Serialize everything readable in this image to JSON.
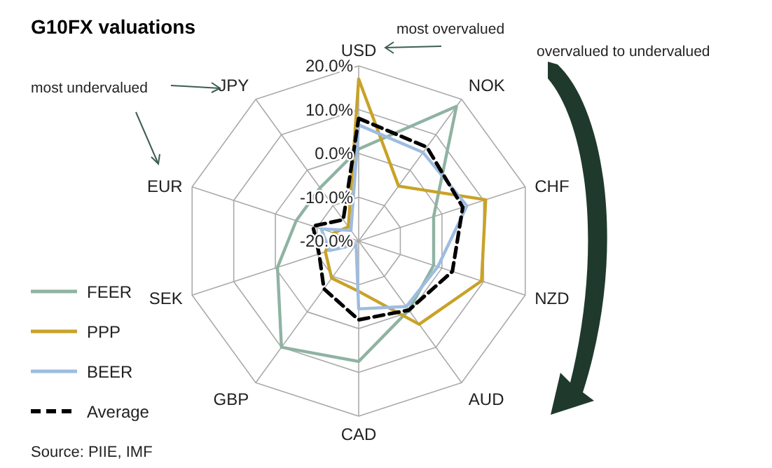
{
  "chart_data": {
    "type": "radar",
    "title": "G10FX valuations",
    "categories": [
      "USD",
      "NOK",
      "CHF",
      "NZD",
      "AUD",
      "CAD",
      "GBP",
      "SEK",
      "EUR",
      "JPY"
    ],
    "series": [
      {
        "name": "FEER",
        "color": "#8fb3a3",
        "values": [
          1,
          18,
          -2,
          -2,
          -0.5,
          7.5,
          10,
          -0.5,
          -5,
          -5
        ]
      },
      {
        "name": "PPP",
        "color": "#c9a227",
        "values": [
          17,
          -4.5,
          10.5,
          9.5,
          3.5,
          -8.5,
          -9.5,
          -12,
          -14,
          -16
        ]
      },
      {
        "name": "BEER",
        "color": "#9dbce0",
        "values": [
          6.5,
          5,
          6,
          -1,
          -1.5,
          -4.5,
          -19,
          -13,
          -11,
          -17
        ]
      },
      {
        "name": "Average",
        "color": "#000000",
        "line_style": "dashed",
        "values": [
          8,
          6.5,
          5,
          2.5,
          -0.5,
          -2,
          -6.5,
          -10.5,
          -9,
          -14
        ]
      }
    ],
    "ylim": [
      -20,
      20
    ],
    "yticks": [
      {
        "value": -20,
        "label": "-20.0%"
      },
      {
        "value": -10,
        "label": "-10.0%"
      },
      {
        "value": 0,
        "label": "0.0%"
      },
      {
        "value": 10,
        "label": "10.0%"
      },
      {
        "value": 20,
        "label": "20.0%"
      }
    ],
    "grid": true,
    "legend": "bottom left",
    "annotations": [
      "most overvalued",
      "most undervalued",
      "overvalued to undervalued",
      "Source: PIIE, IMF"
    ]
  }
}
